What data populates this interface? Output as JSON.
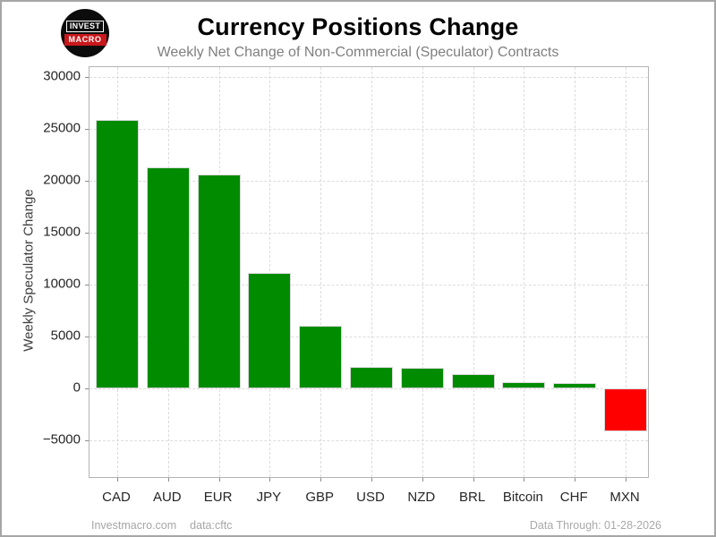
{
  "logo": {
    "line1": "INVEST",
    "line2": "MACRO"
  },
  "chart_data": {
    "type": "bar",
    "title": "Currency Positions Change",
    "subtitle": "Weekly Net Change of Non-Commercial (Speculator) Contracts",
    "xlabel": "",
    "ylabel": "Weekly Speculator Change",
    "categories": [
      "CAD",
      "AUD",
      "EUR",
      "JPY",
      "GBP",
      "USD",
      "NZD",
      "BRL",
      "Bitcoin",
      "CHF",
      "MXN"
    ],
    "values": [
      25900,
      21300,
      20600,
      11100,
      6000,
      2100,
      2000,
      1400,
      600,
      500,
      -4100
    ],
    "yticks": [
      30000,
      25000,
      20000,
      15000,
      10000,
      5000,
      0,
      -5000
    ],
    "ytick_labels": [
      "30000",
      "25000",
      "20000",
      "15000",
      "10000",
      "5000",
      "0",
      "−5000"
    ],
    "ylim": [
      -8710,
      30950
    ],
    "grid": true,
    "legend": false,
    "colors": {
      "positive": "#008B00",
      "negative": "#FF0000"
    }
  },
  "footer": {
    "site": "Investmacro.com",
    "source": "data:cftc",
    "data_through": "Data Through: 01-28-2026"
  }
}
